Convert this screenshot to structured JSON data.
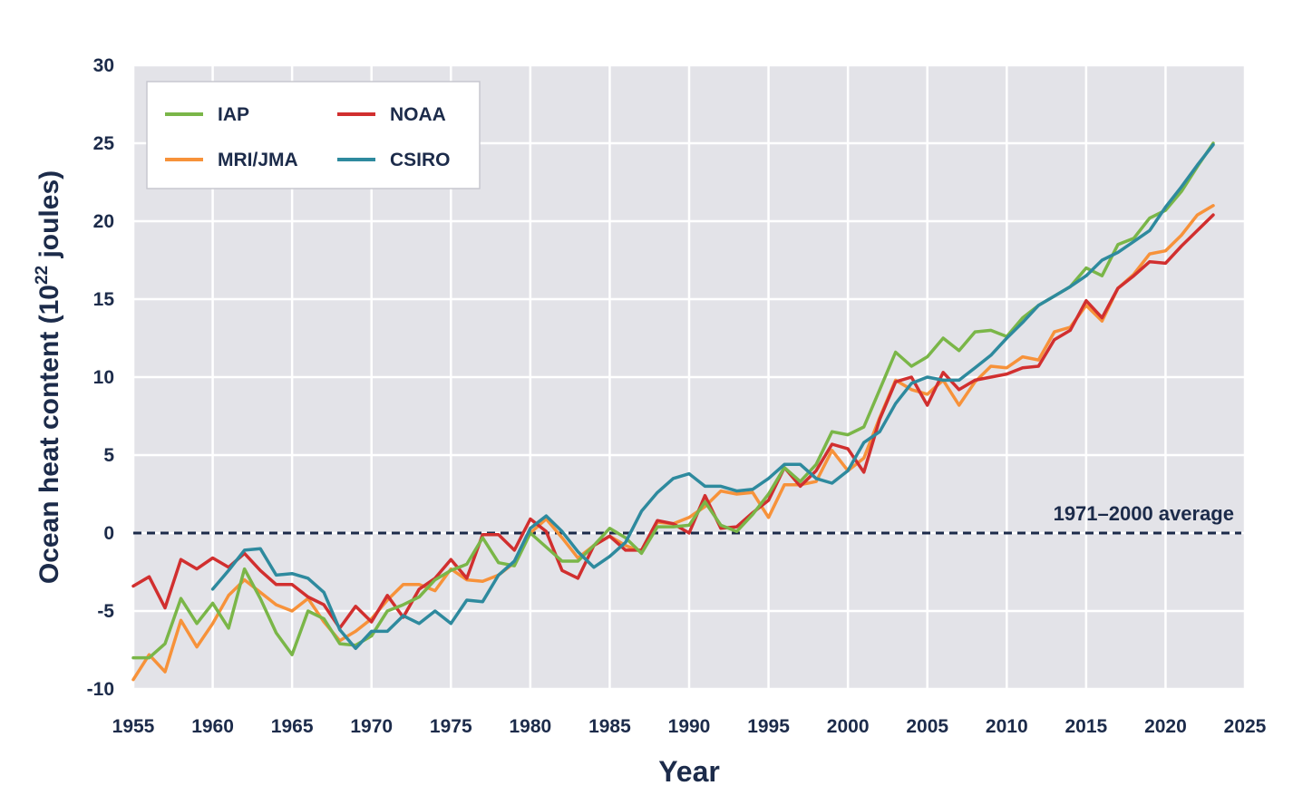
{
  "chart_data": {
    "type": "line",
    "title": "",
    "xlabel": "Year",
    "ylabel_main": "Ocean heat content (10",
    "ylabel_sup": "22",
    "ylabel_end": " joules)",
    "xlim": [
      1955,
      2025
    ],
    "ylim": [
      -10,
      30
    ],
    "x_ticks": [
      1955,
      1960,
      1965,
      1970,
      1975,
      1980,
      1985,
      1990,
      1995,
      2000,
      2005,
      2010,
      2015,
      2020,
      2025
    ],
    "y_ticks": [
      -10,
      -5,
      0,
      5,
      10,
      15,
      20,
      25,
      30
    ],
    "grid": true,
    "legend_position": "top-left",
    "reference_line": {
      "y": 0,
      "label": "1971–2000 average",
      "color": "#1c2b4a"
    },
    "series": [
      {
        "name": "IAP",
        "color": "#7ab648",
        "start_year": 1955,
        "values": [
          -8.0,
          -8.0,
          -7.1,
          -4.2,
          -5.8,
          -4.5,
          -6.1,
          -2.3,
          -4.2,
          -6.4,
          -7.8,
          -5.0,
          -5.5,
          -7.1,
          -7.2,
          -6.6,
          -5.0,
          -4.6,
          -4.1,
          -3.0,
          -2.4,
          -2.0,
          -0.3,
          -1.9,
          -2.1,
          0.0,
          -0.9,
          -1.8,
          -1.8,
          -0.8,
          0.3,
          -0.3,
          -1.3,
          0.4,
          0.4,
          0.5,
          2.0,
          0.5,
          0.1,
          1.2,
          2.5,
          4.2,
          3.3,
          4.4,
          6.5,
          6.3,
          6.8,
          9.2,
          11.6,
          10.7,
          11.3,
          12.5,
          11.7,
          12.9,
          13.0,
          12.6,
          13.8,
          14.6,
          15.2,
          15.8,
          17.0,
          16.5,
          18.5,
          18.9,
          20.2,
          20.7,
          21.9,
          23.5,
          25.0
        ]
      },
      {
        "name": "MRI/JMA",
        "color": "#f7923a",
        "start_year": 1955,
        "values": [
          -9.4,
          -7.8,
          -8.9,
          -5.6,
          -7.3,
          -5.8,
          -4.0,
          -3.0,
          -3.8,
          -4.6,
          -5.0,
          -4.2,
          -5.7,
          -6.9,
          -6.3,
          -5.5,
          -4.3,
          -3.3,
          -3.3,
          -3.7,
          -2.3,
          -3.0,
          -3.1,
          -2.7,
          -1.9,
          0.0,
          0.9,
          -0.3,
          -1.6,
          -0.8,
          -0.2,
          -0.8,
          -1.2,
          0.7,
          0.6,
          1.0,
          1.7,
          2.7,
          2.5,
          2.6,
          1.0,
          3.1,
          3.1,
          3.3,
          5.3,
          4.0,
          4.8,
          7.4,
          9.8,
          9.2,
          8.9,
          9.8,
          8.2,
          9.7,
          10.7,
          10.6,
          11.3,
          11.1,
          12.9,
          13.2,
          14.6,
          13.6,
          15.7,
          16.6,
          17.9,
          18.1,
          19.1,
          20.4,
          21.0
        ]
      },
      {
        "name": "NOAA",
        "color": "#d12f2f",
        "start_year": 1955,
        "values": [
          -3.4,
          -2.8,
          -4.8,
          -1.7,
          -2.3,
          -1.6,
          -2.2,
          -1.3,
          -2.4,
          -3.3,
          -3.3,
          -4.1,
          -4.6,
          -6.1,
          -4.7,
          -5.7,
          -4.0,
          -5.4,
          -3.6,
          -2.9,
          -1.7,
          -2.9,
          -0.1,
          -0.1,
          -1.1,
          0.9,
          0.1,
          -2.4,
          -2.9,
          -0.8,
          -0.2,
          -1.1,
          -1.1,
          0.8,
          0.6,
          0.0,
          2.4,
          0.3,
          0.4,
          1.3,
          2.1,
          4.2,
          3.0,
          4.0,
          5.7,
          5.4,
          3.9,
          7.3,
          9.7,
          10.0,
          8.2,
          10.3,
          9.2,
          9.8,
          10.0,
          10.2,
          10.6,
          10.7,
          12.4,
          13.0,
          14.9,
          13.8,
          15.7,
          16.5,
          17.4,
          17.3,
          18.4,
          19.4,
          20.4
        ]
      },
      {
        "name": "CSIRO",
        "color": "#2e8a9e",
        "start_year": 1960,
        "values": [
          -3.6,
          -2.4,
          -1.1,
          -1.0,
          -2.7,
          -2.6,
          -2.9,
          -3.8,
          -6.2,
          -7.4,
          -6.3,
          -6.3,
          -5.3,
          -5.8,
          -5.0,
          -5.8,
          -4.3,
          -4.4,
          -2.7,
          -1.8,
          0.3,
          1.1,
          0.1,
          -1.2,
          -2.2,
          -1.5,
          -0.6,
          1.4,
          2.6,
          3.5,
          3.8,
          3.0,
          3.0,
          2.7,
          2.8,
          3.5,
          4.4,
          4.4,
          3.5,
          3.2,
          4.0,
          5.8,
          6.5,
          8.3,
          9.6,
          10.0,
          9.8,
          9.8,
          10.6,
          11.4,
          12.5,
          13.5,
          14.6,
          15.2,
          15.8,
          16.5,
          17.5,
          18.0,
          18.7,
          19.4,
          20.9,
          22.2,
          23.6,
          24.9
        ]
      }
    ],
    "legend_order": [
      "IAP",
      "NOAA",
      "MRI/JMA",
      "CSIRO"
    ]
  }
}
